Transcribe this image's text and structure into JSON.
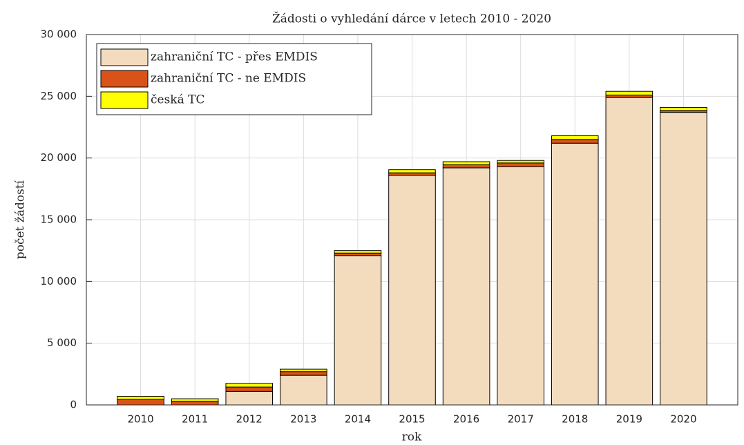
{
  "chart_data": {
    "type": "stacked_bar",
    "title": "Žádosti o vyhledání dárce v letech 2010 - 2020",
    "x_label": "rok",
    "y_label": "počet žádostí",
    "categories": [
      "2010",
      "2011",
      "2012",
      "2013",
      "2014",
      "2015",
      "2016",
      "2017",
      "2018",
      "2019",
      "2020"
    ],
    "series": [
      {
        "name": "zahraniční TC - přes EMDIS",
        "color": "#f3dcbd",
        "values": [
          0,
          0,
          1100,
          2400,
          12100,
          18600,
          19200,
          19300,
          21200,
          24900,
          23700
        ]
      },
      {
        "name": "zahraniční TC - ne EMDIS",
        "color": "#d95319",
        "values": [
          450,
          300,
          350,
          300,
          200,
          200,
          250,
          300,
          300,
          200,
          150
        ]
      },
      {
        "name": "česká TC",
        "color": "#ffff00",
        "values": [
          250,
          200,
          300,
          200,
          200,
          250,
          250,
          200,
          300,
          300,
          250
        ]
      }
    ],
    "ylim": [
      0,
      30000
    ],
    "yticks": [
      0,
      {
        "value": 5000,
        "label": "5 000"
      },
      {
        "value": 10000,
        "label": "10 000"
      },
      {
        "value": 15000,
        "label": "15 000"
      },
      {
        "value": 20000,
        "label": "20 000"
      },
      {
        "value": 25000,
        "label": "25 000"
      },
      {
        "value": 30000,
        "label": "30 000"
      }
    ],
    "grid": true,
    "legend": "top-left"
  }
}
